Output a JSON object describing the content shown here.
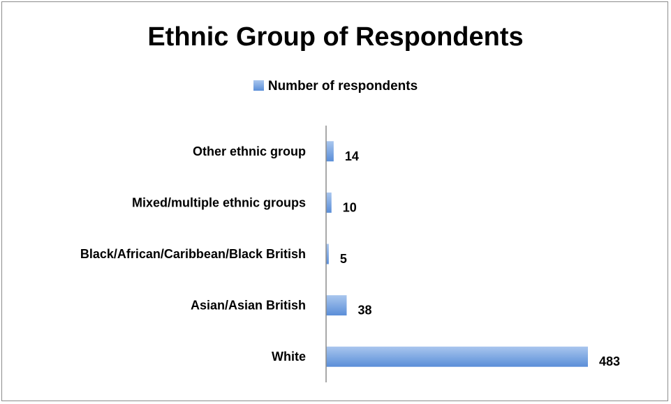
{
  "chart_data": {
    "type": "bar",
    "orientation": "horizontal",
    "title": "Ethnic Group of Respondents",
    "categories": [
      "White",
      "Asian/Asian British",
      "Black/African/Caribbean/Black    British",
      "Mixed/multiple ethnic groups",
      "Other ethnic group"
    ],
    "series": [
      {
        "name": "Number of respondents",
        "values": [
          483,
          38,
          5,
          10,
          14
        ]
      }
    ],
    "legend": "top",
    "grid": false,
    "xlim": [
      0,
      500
    ],
    "colors": {
      "bar_light": "#a9c6ee",
      "bar_dark": "#5a8ed8",
      "axis": "#8c8c8c"
    }
  }
}
